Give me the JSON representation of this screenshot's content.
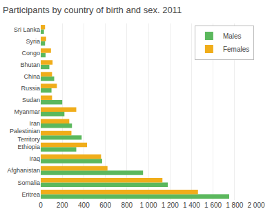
{
  "chart_data": {
    "type": "bar",
    "orientation": "horizontal",
    "title": "Participants by country of birth and sex. 2011",
    "categories": [
      "Eritrea",
      "Somalia",
      "Afghanistan",
      "Iraq",
      "Ethiopia",
      "Palestinian\nTerritory",
      "Iran",
      "Myanmar",
      "Sudan",
      "Russia",
      "China",
      "Bhutan",
      "Congo",
      "Syria",
      "Sri Lanka"
    ],
    "series": [
      {
        "name": "Males",
        "color": "#5BB85D",
        "values": [
          1750,
          1180,
          950,
          570,
          330,
          380,
          290,
          220,
          200,
          100,
          125,
          80,
          45,
          40,
          30
        ]
      },
      {
        "name": "Females",
        "color": "#F0AD1A",
        "values": [
          1460,
          1130,
          620,
          560,
          430,
          285,
          265,
          330,
          105,
          150,
          105,
          110,
          95,
          50,
          40
        ]
      }
    ],
    "xlim": [
      0,
      2000
    ],
    "xticks": [
      0,
      200,
      400,
      600,
      800,
      {
        "value": 1000,
        "label": "1 000"
      },
      {
        "value": 1200,
        "label": "1 200"
      },
      {
        "value": 1400,
        "label": "1 400"
      },
      {
        "value": 1600,
        "label": "1 600"
      },
      {
        "value": 1800,
        "label": "1 800"
      },
      {
        "value": 2000,
        "label": "2 000"
      }
    ],
    "grid": true,
    "legend": "upper right"
  }
}
